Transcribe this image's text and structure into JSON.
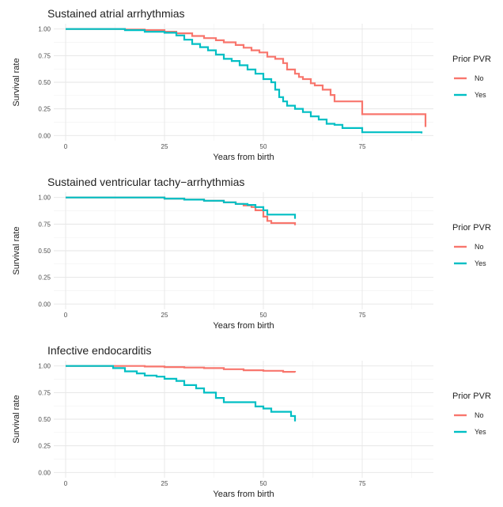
{
  "chart_data": [
    {
      "type": "line",
      "title": "Sustained atrial arrhythmias",
      "xlabel": "Years from birth",
      "ylabel": "Survival rate",
      "xlim": [
        -3,
        93
      ],
      "ylim": [
        -0.05,
        1.05
      ],
      "xticks": [
        0,
        25,
        50,
        75
      ],
      "xtick_labels": [
        "0",
        "25",
        "50",
        "75"
      ],
      "yticks": [
        0,
        0.25,
        0.5,
        0.75,
        1.0
      ],
      "ytick_labels": [
        "0.00",
        "0.25",
        "0.50",
        "0.75",
        "1.00"
      ],
      "grid": true,
      "legend": {
        "title": "Prior PVR",
        "position": "right"
      },
      "series": [
        {
          "name": "No",
          "color": "#F8766D",
          "step": true,
          "x": [
            0,
            10,
            15,
            20,
            25,
            28,
            32,
            35,
            38,
            40,
            43,
            45,
            47,
            49,
            51,
            53,
            55,
            56,
            58,
            59,
            60,
            62,
            63,
            65,
            67,
            68,
            75,
            90,
            91
          ],
          "y": [
            1.0,
            1.0,
            0.995,
            0.99,
            0.975,
            0.96,
            0.935,
            0.915,
            0.895,
            0.875,
            0.85,
            0.825,
            0.8,
            0.78,
            0.74,
            0.72,
            0.68,
            0.62,
            0.58,
            0.55,
            0.53,
            0.49,
            0.47,
            0.43,
            0.38,
            0.32,
            0.2,
            0.2,
            0.08
          ]
        },
        {
          "name": "Yes",
          "color": "#00BFC4",
          "step": true,
          "x": [
            0,
            10,
            15,
            20,
            25,
            28,
            30,
            32,
            34,
            36,
            38,
            40,
            42,
            44,
            46,
            48,
            50,
            52,
            53,
            54,
            55,
            56,
            58,
            60,
            62,
            64,
            66,
            68,
            70,
            75,
            90
          ],
          "y": [
            1.0,
            1.0,
            0.99,
            0.975,
            0.965,
            0.94,
            0.9,
            0.86,
            0.83,
            0.8,
            0.76,
            0.72,
            0.7,
            0.66,
            0.62,
            0.58,
            0.53,
            0.5,
            0.43,
            0.36,
            0.32,
            0.28,
            0.25,
            0.22,
            0.18,
            0.15,
            0.11,
            0.1,
            0.07,
            0.03,
            0.02
          ]
        }
      ]
    },
    {
      "type": "line",
      "title": "Sustained ventricular tachy−arrhythmias",
      "xlabel": "Years from birth",
      "ylabel": "Survival rate",
      "xlim": [
        -3,
        93
      ],
      "ylim": [
        -0.05,
        1.05
      ],
      "xticks": [
        0,
        25,
        50,
        75
      ],
      "xtick_labels": [
        "0",
        "25",
        "50",
        "75"
      ],
      "yticks": [
        0,
        0.25,
        0.5,
        0.75,
        1.0
      ],
      "ytick_labels": [
        "0.00",
        "0.25",
        "0.50",
        "0.75",
        "1.00"
      ],
      "grid": true,
      "legend": {
        "title": "Prior PVR",
        "position": "right"
      },
      "series": [
        {
          "name": "No",
          "color": "#F8766D",
          "step": true,
          "x": [
            0,
            20,
            25,
            30,
            35,
            40,
            43,
            45,
            47,
            48,
            50,
            51,
            52,
            58
          ],
          "y": [
            1.0,
            1.0,
            0.99,
            0.98,
            0.97,
            0.955,
            0.94,
            0.925,
            0.91,
            0.88,
            0.82,
            0.78,
            0.76,
            0.74
          ]
        },
        {
          "name": "Yes",
          "color": "#00BFC4",
          "step": true,
          "x": [
            0,
            20,
            25,
            30,
            35,
            40,
            43,
            46,
            48,
            50,
            51,
            58
          ],
          "y": [
            1.0,
            1.0,
            0.99,
            0.98,
            0.97,
            0.955,
            0.94,
            0.93,
            0.91,
            0.88,
            0.84,
            0.8
          ]
        }
      ]
    },
    {
      "type": "line",
      "title": "Infective endocarditis",
      "xlabel": "Years from birth",
      "ylabel": "Survival rate",
      "xlim": [
        -3,
        93
      ],
      "ylim": [
        -0.05,
        1.05
      ],
      "xticks": [
        0,
        25,
        50,
        75
      ],
      "xtick_labels": [
        "0",
        "25",
        "50",
        "75"
      ],
      "yticks": [
        0,
        0.25,
        0.5,
        0.75,
        1.0
      ],
      "ytick_labels": [
        "0.00",
        "0.25",
        "0.50",
        "0.75",
        "1.00"
      ],
      "grid": true,
      "legend": {
        "title": "Prior PVR",
        "position": "right"
      },
      "series": [
        {
          "name": "No",
          "color": "#F8766D",
          "step": true,
          "x": [
            0,
            10,
            20,
            25,
            30,
            35,
            40,
            45,
            50,
            55,
            58
          ],
          "y": [
            1.0,
            1.0,
            0.995,
            0.99,
            0.985,
            0.98,
            0.97,
            0.96,
            0.955,
            0.945,
            0.94
          ]
        },
        {
          "name": "Yes",
          "color": "#00BFC4",
          "step": true,
          "x": [
            0,
            10,
            12,
            15,
            18,
            20,
            23,
            25,
            28,
            30,
            33,
            35,
            38,
            40,
            45,
            48,
            50,
            52,
            57,
            58
          ],
          "y": [
            1.0,
            1.0,
            0.98,
            0.95,
            0.93,
            0.91,
            0.9,
            0.88,
            0.86,
            0.82,
            0.79,
            0.75,
            0.7,
            0.66,
            0.66,
            0.62,
            0.6,
            0.57,
            0.53,
            0.48
          ]
        }
      ]
    }
  ]
}
